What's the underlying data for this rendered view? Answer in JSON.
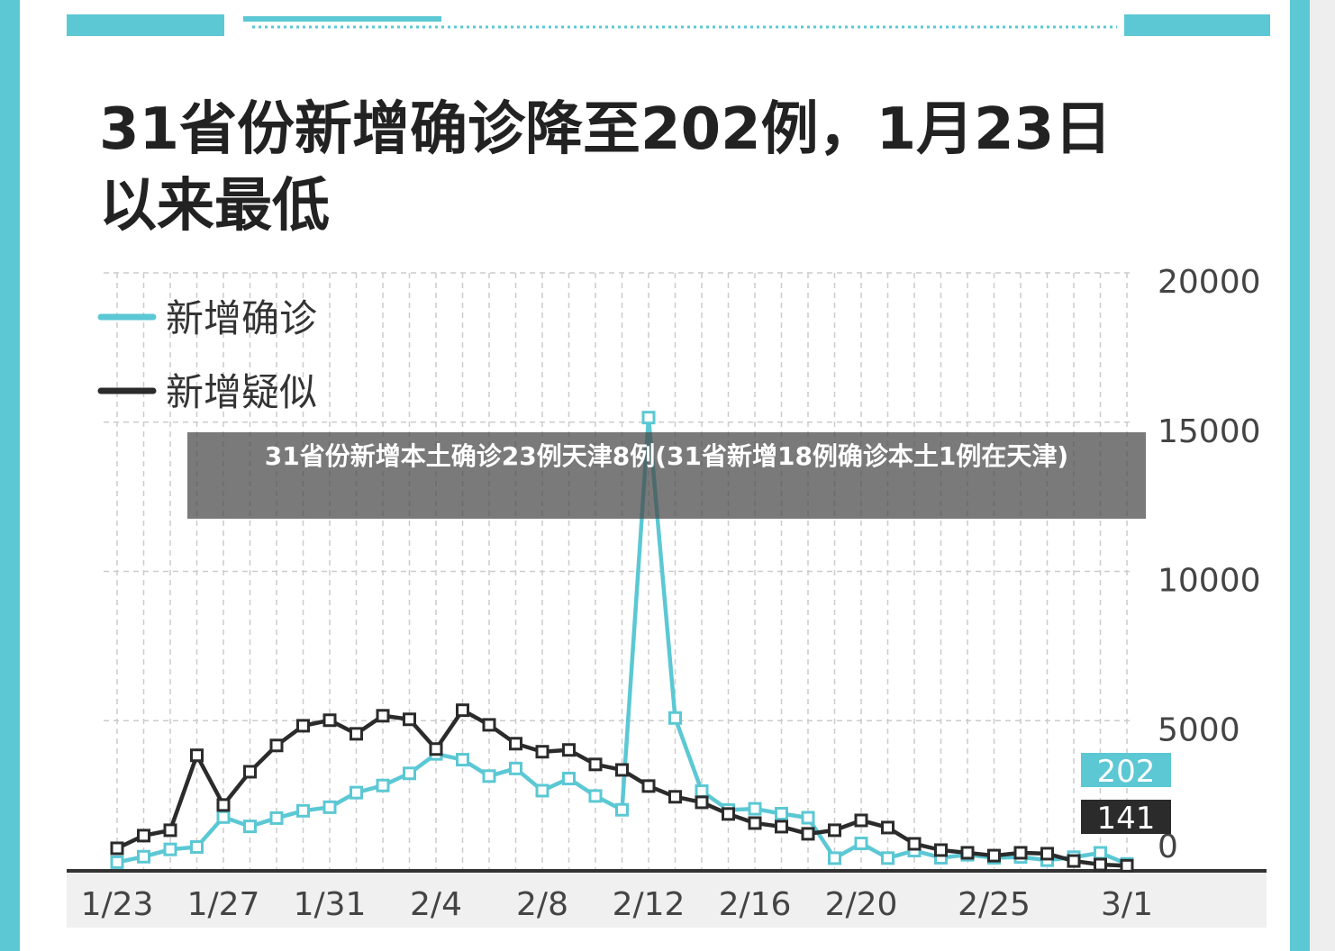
{
  "chart_data": {
    "type": "line",
    "title": "31省份新增确诊降至202例，1月23日以来最低",
    "categories": [
      "1/23",
      null,
      null,
      null,
      "1/27",
      null,
      null,
      null,
      "1/31",
      null,
      null,
      null,
      "2/4",
      null,
      null,
      null,
      "2/8",
      null,
      null,
      null,
      "2/12",
      null,
      null,
      null,
      "2/16",
      null,
      null,
      null,
      "2/20",
      null,
      null,
      null,
      null,
      "2/25",
      null,
      null,
      null,
      null,
      "3/1"
    ],
    "series": [
      {
        "name": "新增确诊",
        "color": "#5bc8d4",
        "values": [
          259,
          444,
          688,
          769,
          1771,
          1459,
          1737,
          1982,
          2102,
          2590,
          2829,
          3235,
          3887,
          3694,
          3143,
          3399,
          2656,
          3062,
          2478,
          2015,
          15152,
          5090,
          2641,
          2009,
          2048,
          1886,
          1749,
          394,
          889,
          397,
          648,
          409,
          508,
          406,
          433,
          327,
          427,
          573,
          202
        ]
      },
      {
        "name": "新增疑似",
        "color": "#2b2b2b",
        "values": [
          725,
          1150,
          1330,
          3840,
          2175,
          3290,
          4170,
          4830,
          5015,
          4560,
          5165,
          5045,
          4050,
          5350,
          4860,
          4230,
          3960,
          4020,
          3535,
          3350,
          2810,
          2450,
          2265,
          1875,
          1570,
          1450,
          1210,
          1330,
          1660,
          1420,
          875,
          665,
          575,
          480,
          575,
          545,
          300,
          180,
          141
        ]
      }
    ],
    "ylim": [
      0,
      20000
    ],
    "yticks": [
      0,
      5000,
      10000,
      15000,
      20000
    ],
    "grid": true,
    "legend": "top-left"
  },
  "caption": "31省份新增本土确诊23例天津8例(31省新增18例确诊本土1例在天津)"
}
